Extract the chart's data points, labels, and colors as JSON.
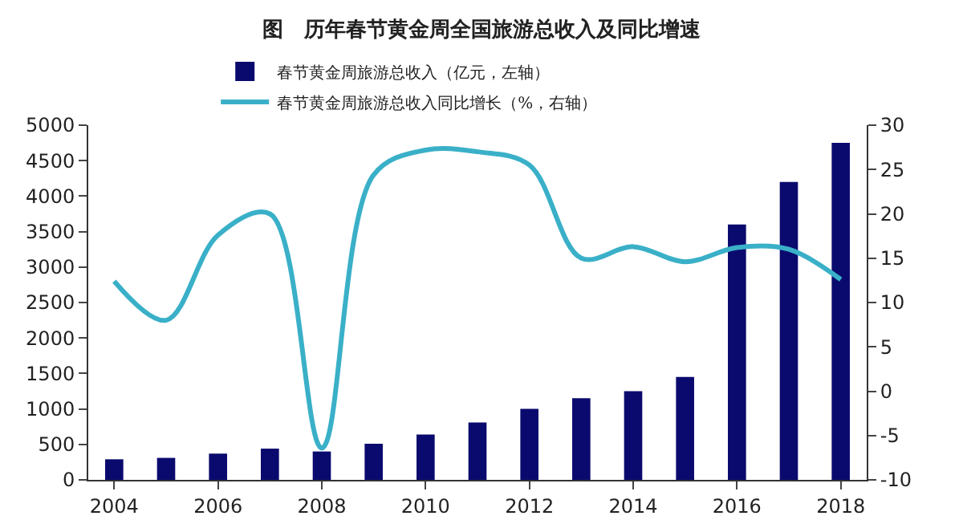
{
  "chart_data": {
    "type": "bar",
    "title": "图　历年春节黄金周全国旅游总收入及同比增速",
    "categories": [
      "2004",
      null,
      "2006",
      null,
      "2008",
      null,
      "2010",
      null,
      "2012",
      null,
      "2014",
      null,
      "2016",
      null,
      "2018"
    ],
    "series": [
      {
        "name": "春节黄金周旅游总收入（亿元，左轴）",
        "color": "#0a0a6e",
        "values": [
          290,
          310,
          370,
          440,
          400,
          510,
          640,
          810,
          1000,
          1150,
          1250,
          1450,
          3600,
          4200,
          4750
        ]
      },
      {
        "name": "春节黄金周旅游总收入同比增长（%，右轴）",
        "type": "line",
        "axis": "y2",
        "color": "#3ab0c8",
        "values": [
          12.4,
          8,
          17.6,
          20,
          -6.4,
          24.4,
          27.2,
          27,
          25.5,
          15,
          16.3,
          14.6,
          16.2,
          16,
          12.6
        ]
      }
    ],
    "ylim": [
      0,
      5000
    ],
    "yticks": [
      0,
      500,
      1000,
      1500,
      2000,
      2500,
      3000,
      3500,
      4000,
      4500,
      5000
    ],
    "y2lim": [
      -10,
      30
    ],
    "y2ticks": [
      -10,
      -5,
      0,
      5,
      10,
      15,
      20,
      25,
      30
    ],
    "grid": false,
    "legend": "top",
    "marker": "none"
  }
}
